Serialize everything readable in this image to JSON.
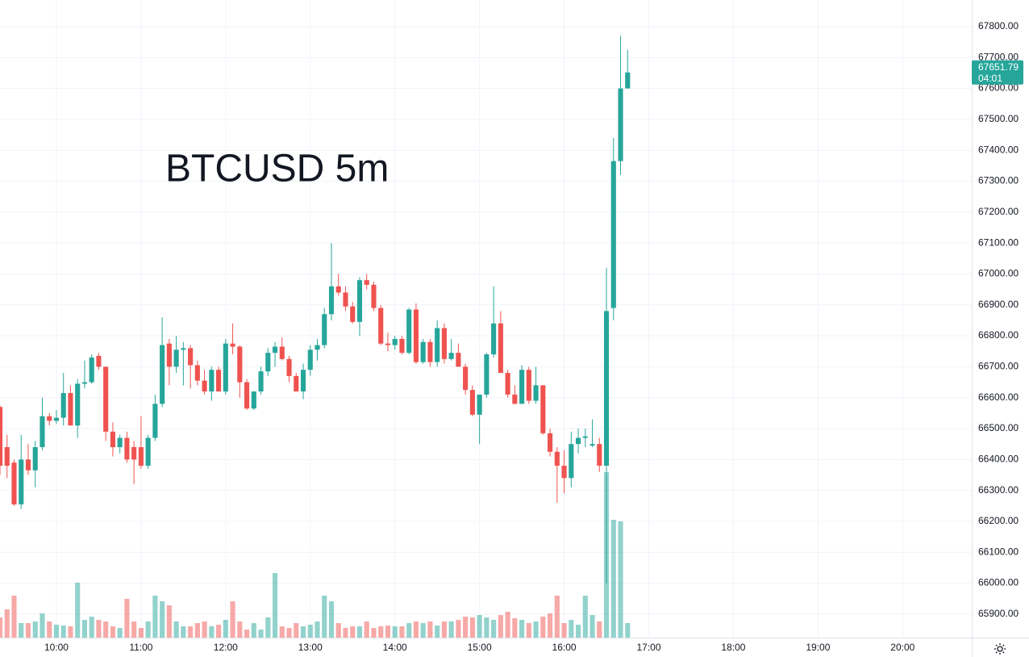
{
  "chart_data": {
    "type": "candlestick",
    "title": "BTCUSD 5m",
    "x": [
      "09:20",
      "09:25",
      "09:30",
      "09:35",
      "09:40",
      "09:45",
      "09:50",
      "09:55",
      "10:00",
      "10:05",
      "10:10",
      "10:15",
      "10:20",
      "10:25",
      "10:30",
      "10:35",
      "10:40",
      "10:45",
      "10:50",
      "10:55",
      "11:00",
      "11:05",
      "11:10",
      "11:15",
      "11:20",
      "11:25",
      "11:30",
      "11:35",
      "11:40",
      "11:45",
      "11:50",
      "11:55",
      "12:00",
      "12:05",
      "12:10",
      "12:15",
      "12:20",
      "12:25",
      "12:30",
      "12:35",
      "12:40",
      "12:45",
      "12:50",
      "12:55",
      "13:00",
      "13:05",
      "13:10",
      "13:15",
      "13:20",
      "13:25",
      "13:30",
      "13:35",
      "13:40",
      "13:45",
      "13:50",
      "13:55",
      "14:00",
      "14:05",
      "14:10",
      "14:15",
      "14:20",
      "14:25",
      "14:30",
      "14:35",
      "14:40",
      "14:45",
      "14:50",
      "14:55",
      "15:00",
      "15:05",
      "15:10",
      "15:15",
      "15:20",
      "15:25",
      "15:30",
      "15:35",
      "15:40",
      "15:45",
      "15:50",
      "15:55",
      "16:00",
      "16:05",
      "16:10",
      "16:15",
      "16:20",
      "16:25",
      "16:30",
      "16:35",
      "16:40",
      "16:45"
    ],
    "open": [
      66570,
      66440,
      66390,
      66255,
      66400,
      66365,
      66440,
      66540,
      66525,
      66535,
      66615,
      66510,
      66645,
      66650,
      66735,
      66700,
      66490,
      66440,
      66470,
      66440,
      66440,
      66380,
      66470,
      66580,
      66775,
      66700,
      66755,
      66760,
      66705,
      66655,
      66620,
      66690,
      66620,
      66775,
      66765,
      66650,
      66565,
      66620,
      66685,
      66745,
      66765,
      66725,
      66670,
      66620,
      66690,
      66755,
      66770,
      66870,
      66960,
      66940,
      66895,
      66845,
      66980,
      66965,
      66890,
      66775,
      66770,
      66790,
      66745,
      66885,
      66715,
      66780,
      66715,
      66825,
      66725,
      66745,
      66700,
      66625,
      66545,
      66610,
      66740,
      66840,
      66680,
      66610,
      66580,
      66690,
      66590,
      66640,
      66485,
      66425,
      66380,
      66340,
      66450,
      66470,
      66445,
      66450,
      66380,
      66890,
      67365,
      67600
    ],
    "high": [
      66575,
      66480,
      66400,
      66480,
      66450,
      66460,
      66600,
      66550,
      66560,
      66680,
      66640,
      66660,
      66720,
      66740,
      66745,
      66700,
      66520,
      66480,
      66490,
      66460,
      66540,
      66480,
      66610,
      66860,
      66790,
      66800,
      66780,
      66770,
      66720,
      66690,
      66700,
      66700,
      66790,
      66840,
      66770,
      66660,
      66620,
      66700,
      66760,
      66780,
      66795,
      66735,
      66680,
      66710,
      66770,
      66790,
      66890,
      67100,
      67000,
      66960,
      66910,
      66990,
      67000,
      66975,
      66900,
      66810,
      66800,
      66800,
      66890,
      66905,
      66790,
      66790,
      66850,
      66840,
      66790,
      66775,
      66710,
      66640,
      66610,
      66745,
      66960,
      66880,
      66690,
      66640,
      66705,
      66700,
      66700,
      66640,
      66500,
      66440,
      66430,
      66490,
      66500,
      66500,
      66530,
      66470,
      67020,
      67440,
      67770,
      67725
    ],
    "low": [
      66350,
      66340,
      66250,
      66240,
      66350,
      66310,
      66430,
      66510,
      66515,
      66510,
      66510,
      66470,
      66630,
      66645,
      66690,
      66460,
      66410,
      66420,
      66390,
      66320,
      66370,
      66370,
      66460,
      66570,
      66640,
      66680,
      66640,
      66630,
      66640,
      66610,
      66590,
      66620,
      66610,
      66740,
      66600,
      66560,
      66560,
      66610,
      66670,
      66700,
      66720,
      66650,
      66620,
      66595,
      66670,
      66720,
      66760,
      66850,
      66930,
      66880,
      66840,
      66800,
      66950,
      66880,
      66770,
      66750,
      66755,
      66740,
      66740,
      66710,
      66710,
      66700,
      66700,
      66710,
      66720,
      66700,
      66610,
      66540,
      66450,
      66600,
      66730,
      66680,
      66600,
      66580,
      66580,
      66580,
      66580,
      66480,
      66410,
      66260,
      66290,
      66310,
      66420,
      66440,
      66440,
      66360,
      66000,
      66850,
      67320,
      67600
    ],
    "close": [
      66380,
      66380,
      66255,
      66400,
      66365,
      66440,
      66540,
      66525,
      66535,
      66615,
      66510,
      66645,
      66650,
      66730,
      66700,
      66490,
      66440,
      66470,
      66400,
      66400,
      66380,
      66470,
      66580,
      66770,
      66700,
      66755,
      66760,
      66705,
      66655,
      66620,
      66690,
      66620,
      66775,
      66765,
      66650,
      66565,
      66620,
      66685,
      66745,
      66765,
      66725,
      66670,
      66620,
      66690,
      66755,
      66770,
      66870,
      66960,
      66940,
      66895,
      66845,
      66980,
      66965,
      66890,
      66775,
      66770,
      66790,
      66745,
      66885,
      66715,
      66780,
      66715,
      66825,
      66725,
      66745,
      66700,
      66625,
      66545,
      66610,
      66740,
      66840,
      66680,
      66610,
      66580,
      66690,
      66590,
      66640,
      66485,
      66425,
      66380,
      66340,
      66450,
      66470,
      66475,
      66450,
      66380,
      66880,
      67365,
      67600,
      67651.79
    ],
    "volume": [
      25,
      35,
      52,
      18,
      18,
      20,
      30,
      20,
      16,
      15,
      14,
      68,
      22,
      26,
      22,
      20,
      14,
      12,
      48,
      20,
      12,
      20,
      52,
      45,
      40,
      20,
      14,
      14,
      18,
      20,
      14,
      16,
      22,
      45,
      20,
      10,
      18,
      10,
      25,
      80,
      14,
      12,
      18,
      14,
      16,
      20,
      52,
      45,
      18,
      12,
      14,
      14,
      20,
      12,
      14,
      15,
      14,
      14,
      18,
      20,
      18,
      20,
      15,
      20,
      20,
      22,
      26,
      25,
      28,
      25,
      22,
      28,
      32,
      24,
      22,
      18,
      20,
      26,
      30,
      52,
      18,
      22,
      16,
      52,
      28,
      20,
      205,
      146,
      144,
      18
    ],
    "up_color": "#26a69a",
    "down_color": "#ef5350",
    "xlim": [
      "09:20",
      "20:49"
    ],
    "xticks": [
      "10:00",
      "11:00",
      "12:00",
      "13:00",
      "14:00",
      "15:00",
      "16:00",
      "17:00",
      "18:00",
      "19:00",
      "20:00"
    ],
    "ylim": [
      65824,
      67886
    ],
    "yticks": [
      {
        "value": 65900,
        "label": "65900.00"
      },
      {
        "value": 66000,
        "label": "66000.00"
      },
      {
        "value": 66100,
        "label": "66100.00"
      },
      {
        "value": 66200,
        "label": "66200.00"
      },
      {
        "value": 66300,
        "label": "66300.00"
      },
      {
        "value": 66400,
        "label": "66400.00"
      },
      {
        "value": 66500,
        "label": "66500.00"
      },
      {
        "value": 66600,
        "label": "66600.00"
      },
      {
        "value": 66700,
        "label": "66700.00"
      },
      {
        "value": 66800,
        "label": "66800.00"
      },
      {
        "value": 66900,
        "label": "66900.00"
      },
      {
        "value": 67000,
        "label": "67000.00"
      },
      {
        "value": 67100,
        "label": "67100.00"
      },
      {
        "value": 67200,
        "label": "67200.00"
      },
      {
        "value": 67300,
        "label": "67300.00"
      },
      {
        "value": 67400,
        "label": "67400.00"
      },
      {
        "value": 67500,
        "label": "67500.00"
      },
      {
        "value": 67600,
        "label": "67600.00"
      },
      {
        "value": 67700,
        "label": "67700.00"
      },
      {
        "value": 67800,
        "label": "67800.00"
      }
    ],
    "vlim": [
      0,
      300
    ],
    "grid": true,
    "last_price_label": "67651.79",
    "countdown": "04:01"
  }
}
